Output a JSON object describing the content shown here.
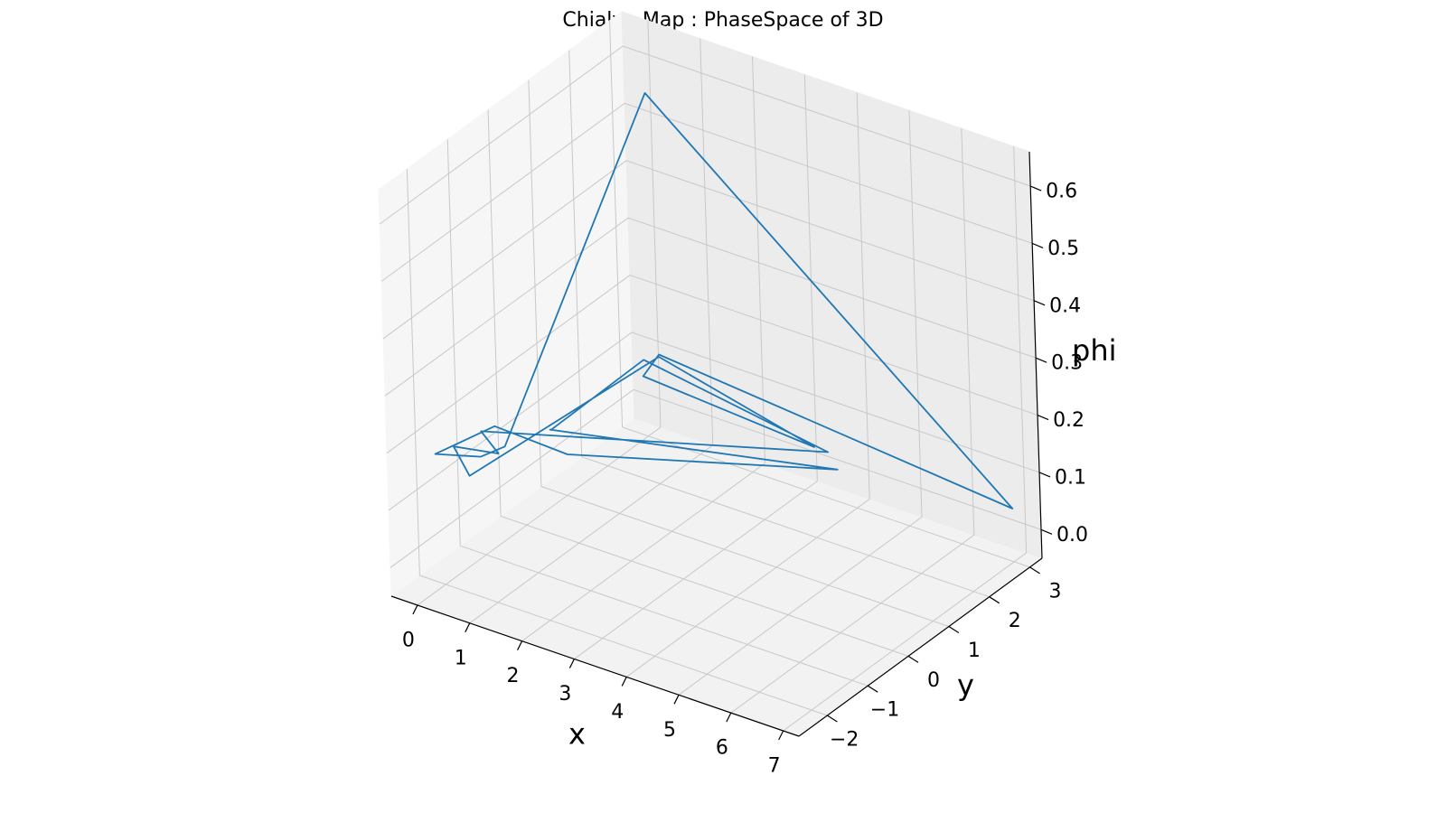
{
  "chart_data": {
    "type": "line",
    "title": "Chialvo Map : PhaseSpace of 3D",
    "projection": "3d",
    "xlabel": "x",
    "ylabel": "y",
    "zlabel": "phi",
    "xlim": [
      -0.5,
      7.3
    ],
    "ylim": [
      -2.7,
      3.3
    ],
    "zlim": [
      -0.05,
      0.66
    ],
    "x_ticks": [
      "0",
      "1",
      "2",
      "3",
      "4",
      "5",
      "6",
      "7"
    ],
    "y_ticks": [
      "−2",
      "−1",
      "0",
      "1",
      "2",
      "3"
    ],
    "z_ticks": [
      "0.0",
      "0.1",
      "0.2",
      "0.3",
      "0.4",
      "0.5",
      "0.6"
    ],
    "grid": true,
    "series": [
      {
        "color": "#1f77b4",
        "points": [
          {
            "x": 0.54,
            "y": -0.06,
            "z": 0.137
          },
          {
            "x": 4.36,
            "y": 2.1,
            "z": 0.075
          },
          {
            "x": 1.75,
            "y": -1.15,
            "z": 0.188
          },
          {
            "x": 0.31,
            "y": -1.09,
            "z": 0.189
          },
          {
            "x": 0.25,
            "y": -2.47,
            "z": 0.21
          },
          {
            "x": 0.81,
            "y": -2.07,
            "z": 0.202
          },
          {
            "x": 0.92,
            "y": -1.62,
            "z": 0.2
          },
          {
            "x": 0.13,
            "y": 3.01,
            "z": 0.553
          },
          {
            "x": 7.03,
            "y": 2.96,
            "z": 0.046
          },
          {
            "x": 1.27,
            "y": 1.73,
            "z": 0.198
          },
          {
            "x": 1.17,
            "y": 1.46,
            "z": 0.171
          },
          {
            "x": 3.98,
            "y": 2.03,
            "z": 0.106
          },
          {
            "x": 1.34,
            "y": 1.64,
            "z": 0.201
          },
          {
            "x": 0.63,
            "y": -2.13,
            "z": 0.166
          },
          {
            "x": 0.21,
            "y": -1.97,
            "z": 0.196
          },
          {
            "x": 0.89,
            "y": -1.74,
            "z": 0.193
          },
          {
            "x": 0.35,
            "y": -1.47,
            "z": 0.201
          },
          {
            "x": 4.01,
            "y": 2.32,
            "z": 0.083
          },
          {
            "x": 1.06,
            "y": 1.62,
            "z": 0.188
          },
          {
            "x": 0.61,
            "y": -0.12,
            "z": 0.141
          }
        ]
      }
    ]
  }
}
